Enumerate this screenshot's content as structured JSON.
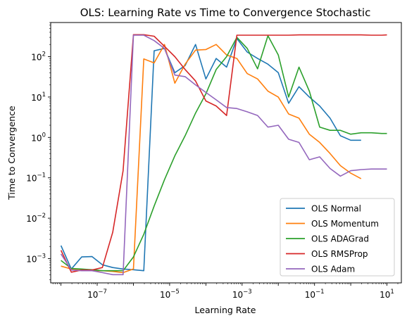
{
  "chart_data": {
    "type": "line",
    "title": "OLS: Learning Rate vs Time to Convergence Stochastic",
    "xlabel": "Learning Rate",
    "ylabel": "Time to Convergence",
    "xscale": "log",
    "yscale": "log",
    "xlim": [
      5.2e-09,
      25
    ],
    "ylim": [
      0.00025,
      700
    ],
    "x_ticks": [
      {
        "value": 1e-07,
        "base": "10",
        "exp": "−7"
      },
      {
        "value": 1e-05,
        "base": "10",
        "exp": "−5"
      },
      {
        "value": 0.001,
        "base": "10",
        "exp": "−3"
      },
      {
        "value": 0.1,
        "base": "10",
        "exp": "−1"
      },
      {
        "value": 10,
        "base": "10",
        "exp": "1"
      }
    ],
    "y_ticks": [
      {
        "value": 0.001,
        "base": "10",
        "exp": "−3"
      },
      {
        "value": 0.01,
        "base": "10",
        "exp": "−2"
      },
      {
        "value": 0.1,
        "base": "10",
        "exp": "−1"
      },
      {
        "value": 1,
        "base": "10",
        "exp": "0"
      },
      {
        "value": 10,
        "base": "10",
        "exp": "1"
      },
      {
        "value": 100,
        "base": "10",
        "exp": "2"
      }
    ],
    "grid": false,
    "legend_position": "lower-right",
    "series": [
      {
        "name": "OLS Normal",
        "color": "#1f77b4",
        "x": [
          1e-08,
          1.93e-08,
          3.73e-08,
          7.2e-08,
          1.39e-07,
          2.68e-07,
          5.18e-07,
          1e-06,
          1.93e-06,
          3.73e-06,
          7.2e-06,
          1.39e-05,
          2.68e-05,
          5.18e-05,
          0.0001,
          0.000193,
          0.000373,
          0.00072,
          0.00139,
          0.00268,
          0.00518,
          0.01,
          0.0193,
          0.0373,
          0.072,
          0.139,
          0.268,
          0.518,
          1,
          1.93
        ],
        "y": [
          0.0021,
          0.00055,
          0.0011,
          0.00112,
          0.0007,
          0.0006,
          0.00055,
          0.00053,
          0.0005,
          140,
          160,
          40,
          60,
          200,
          28,
          90,
          55,
          280,
          130,
          90,
          65,
          40,
          7,
          18,
          10,
          6,
          3,
          1.1,
          0.85,
          0.85
        ]
      },
      {
        "name": "OLS Momentum",
        "color": "#ff7f0e",
        "x": [
          1e-08,
          1.93e-08,
          3.73e-08,
          7.2e-08,
          1.39e-07,
          2.68e-07,
          5.18e-07,
          1e-06,
          1.93e-06,
          3.73e-06,
          7.2e-06,
          1.39e-05,
          2.68e-05,
          5.18e-05,
          0.0001,
          0.000193,
          0.000373,
          0.00072,
          0.00139,
          0.00268,
          0.00518,
          0.01,
          0.0193,
          0.0373,
          0.072,
          0.139,
          0.268,
          0.518,
          1,
          1.93
        ],
        "y": [
          0.00065,
          0.00055,
          0.00053,
          0.0005,
          0.0005,
          0.00048,
          0.00045,
          0.00055,
          88,
          70,
          200,
          22,
          65,
          145,
          150,
          200,
          110,
          90,
          38,
          28,
          14,
          10,
          3.8,
          3,
          1.2,
          0.75,
          0.4,
          0.2,
          0.13,
          0.095
        ]
      },
      {
        "name": "OLS ADAGrad",
        "color": "#2ca02c",
        "x": [
          1e-08,
          1.93e-08,
          3.73e-08,
          7.2e-08,
          1.39e-07,
          2.68e-07,
          5.18e-07,
          1e-06,
          1.93e-06,
          3.73e-06,
          7.2e-06,
          1.39e-05,
          2.68e-05,
          5.18e-05,
          0.0001,
          0.000193,
          0.000373,
          0.00072,
          0.00139,
          0.00268,
          0.00518,
          0.01,
          0.0193,
          0.0373,
          0.072,
          0.139,
          0.268,
          0.518,
          1,
          1.93,
          3.73,
          7.2,
          10
        ],
        "y": [
          0.0009,
          0.00057,
          0.00055,
          0.00053,
          0.0005,
          0.0005,
          0.0005,
          0.0011,
          0.004,
          0.02,
          0.09,
          0.35,
          1.1,
          4,
          12,
          48,
          100,
          300,
          160,
          50,
          330,
          110,
          10,
          55,
          14,
          1.8,
          1.5,
          1.5,
          1.2,
          1.3,
          1.3,
          1.25,
          1.25
        ]
      },
      {
        "name": "OLS RMSProp",
        "color": "#d62728",
        "x": [
          1e-08,
          1.93e-08,
          3.73e-08,
          7.2e-08,
          1.39e-07,
          2.68e-07,
          5.18e-07,
          1e-06,
          1.93e-06,
          3.73e-06,
          7.2e-06,
          1.39e-05,
          2.68e-05,
          5.18e-05,
          0.0001,
          0.000193,
          0.000373,
          0.00072,
          0.00139,
          0.00268,
          0.00518,
          0.01,
          0.0193,
          0.0373,
          0.072,
          0.139,
          0.268,
          0.518,
          1,
          1.93,
          3.73,
          7.2,
          10
        ],
        "y": [
          0.0016,
          0.00046,
          0.00052,
          0.00052,
          0.0006,
          0.0045,
          0.15,
          350,
          350,
          320,
          180,
          100,
          48,
          25,
          8,
          6,
          3.5,
          340,
          340,
          340,
          340,
          340,
          340,
          345,
          345,
          345,
          345,
          345,
          345,
          345,
          340,
          340,
          345
        ]
      },
      {
        "name": "OLS Adam",
        "color": "#9467bd",
        "x": [
          1e-08,
          1.93e-08,
          3.73e-08,
          7.2e-08,
          1.39e-07,
          2.68e-07,
          5.18e-07,
          1e-06,
          1.93e-06,
          3.73e-06,
          7.2e-06,
          1.39e-05,
          2.68e-05,
          5.18e-05,
          0.0001,
          0.000193,
          0.000373,
          0.00072,
          0.00139,
          0.00268,
          0.00518,
          0.01,
          0.0193,
          0.0373,
          0.072,
          0.139,
          0.268,
          0.518,
          1,
          1.93,
          3.73,
          7.2,
          10
        ],
        "y": [
          0.0013,
          0.00052,
          0.0005,
          0.0005,
          0.00045,
          0.0004,
          0.0004,
          340,
          340,
          250,
          160,
          35,
          32,
          20,
          13,
          8.5,
          5.5,
          5.2,
          4.3,
          3.5,
          1.8,
          2,
          0.9,
          0.75,
          0.28,
          0.33,
          0.17,
          0.11,
          0.15,
          0.16,
          0.165,
          0.165,
          0.165
        ]
      }
    ]
  }
}
